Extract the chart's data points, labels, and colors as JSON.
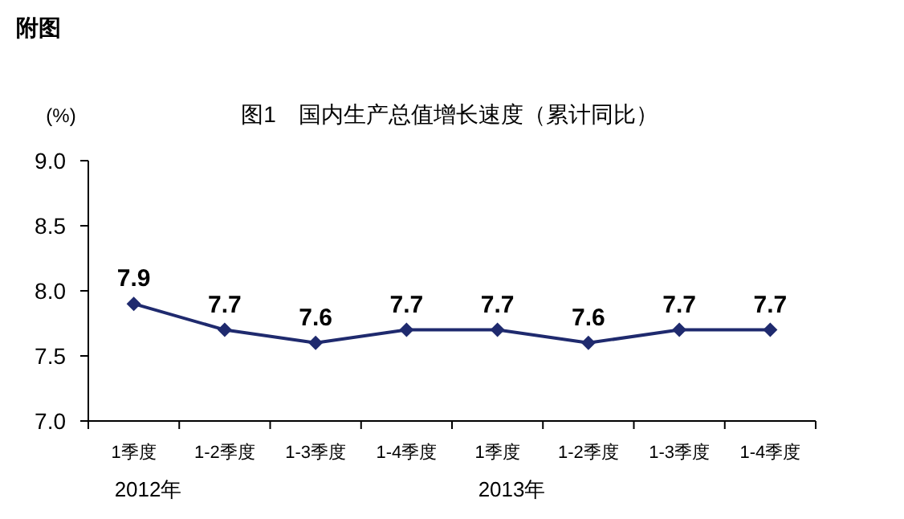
{
  "chart_data": {
    "type": "line",
    "title": "图1　国内生产总值增长速度（累计同比）",
    "ylabel": "(%)",
    "categories": [
      "1季度",
      "1-2季度",
      "1-3季度",
      "1-4季度",
      "1季度",
      "1-2季度",
      "1-3季度",
      "1-4季度"
    ],
    "series": [
      {
        "color": "#1f2a6e",
        "values": [
          7.9,
          7.7,
          7.6,
          7.7,
          7.7,
          7.6,
          7.7,
          7.7
        ]
      }
    ],
    "ylim": [
      7.0,
      9.0
    ],
    "yticks": [
      {
        "value": 7.0,
        "label": "7.0"
      },
      {
        "value": 7.5,
        "label": "7.5"
      },
      {
        "value": 8.0,
        "label": "8.0"
      },
      {
        "value": 8.5,
        "label": "8.5"
      },
      {
        "value": 9.0,
        "label": "9.0"
      }
    ],
    "marker": "diamond",
    "data_labels": true,
    "grid": false,
    "annotations": [
      "附图",
      "2012年",
      "2013年"
    ]
  }
}
